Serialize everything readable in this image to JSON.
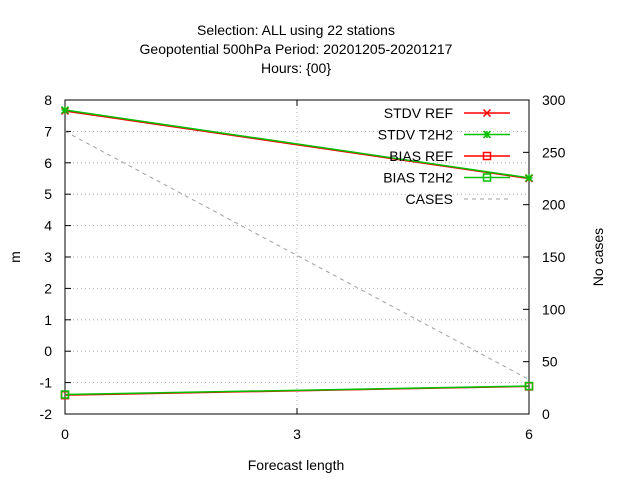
{
  "chart_data": {
    "type": "line",
    "title_lines": [
      "Selection: ALL using    22 stations",
      "Geopotential 500hPa   Period: 20201205-20201217",
      "Hours: {00}"
    ],
    "xlabel": "Forecast length",
    "ylabel": "m",
    "y2label": "No cases",
    "xlim": [
      0,
      6
    ],
    "ylim": [
      -2,
      8
    ],
    "y2lim": [
      0,
      300
    ],
    "x_ticks": [
      0,
      3,
      6
    ],
    "y_ticks": [
      -2,
      -1,
      0,
      1,
      2,
      3,
      4,
      5,
      6,
      7,
      8
    ],
    "y2_ticks": [
      0,
      50,
      100,
      150,
      200,
      250,
      300
    ],
    "grid": true,
    "legend_position": "top-right",
    "x": [
      0,
      6
    ],
    "series": [
      {
        "name": "STDV REF",
        "axis": "y",
        "color": "#ff0000",
        "marker": "x",
        "values": [
          7.65,
          5.5
        ]
      },
      {
        "name": "STDV T2H2",
        "axis": "y",
        "color": "#00c000",
        "marker": "star",
        "values": [
          7.68,
          5.52
        ]
      },
      {
        "name": "BIAS REF",
        "axis": "y",
        "color": "#ff0000",
        "marker": "square",
        "values": [
          -1.4,
          -1.12
        ]
      },
      {
        "name": "BIAS T2H2",
        "axis": "y",
        "color": "#00c000",
        "marker": "square",
        "values": [
          -1.38,
          -1.11
        ]
      },
      {
        "name": "CASES",
        "axis": "y2",
        "color": "#a0a0a0",
        "marker": "none",
        "dashed": true,
        "values": [
          270,
          33
        ]
      }
    ]
  }
}
